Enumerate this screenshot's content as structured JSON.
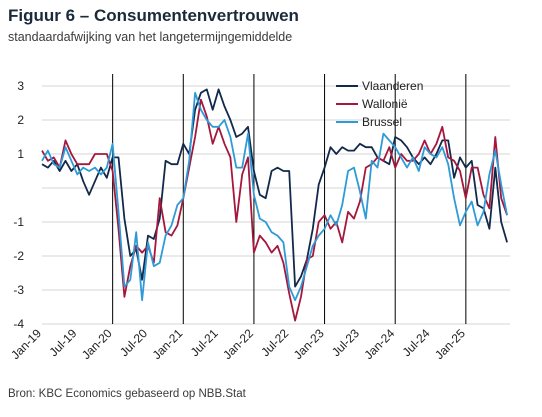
{
  "title": "Figuur 6 – Consumentenvertrouwen",
  "subtitle": "standaardafwijking van het langetermijngemiddelde",
  "source": "Bron: KBC Economics gebaseerd op NBB.Stat",
  "colors": {
    "Vlaanderen": "#13294b",
    "Wallonië": "#a5173c",
    "Brussel": "#2e9bd6",
    "grid": "#d4d4d4",
    "marker": "#000000"
  },
  "chart_data": {
    "type": "line",
    "ylim": [
      -4,
      3
    ],
    "yticks": [
      3,
      2,
      1,
      -1,
      -2,
      -3,
      -4
    ],
    "x_start": "Jan-19",
    "x_end": "Apr-25",
    "xtick_labels": [
      "Jan-19",
      "Jul-19",
      "Jan-20",
      "Jul-20",
      "Jan-21",
      "Jul-21",
      "Jan-22",
      "Jul-22",
      "Jan-23",
      "Jul-23",
      "Jan-24",
      "Jul-24",
      "Jan-25"
    ],
    "year_markers": [
      "Jan-20",
      "Jan-21",
      "Jan-22",
      "Jan-23",
      "Jan-24",
      "Jan-25"
    ],
    "legend_position": "top-right",
    "grid": true,
    "series": [
      {
        "name": "Vlaanderen",
        "values": [
          0.7,
          0.6,
          0.8,
          0.5,
          0.8,
          0.5,
          0.7,
          0.2,
          -0.2,
          0.2,
          0.6,
          0.3,
          0.9,
          0.9,
          -0.9,
          -2.0,
          -1.8,
          -2.7,
          -1.4,
          -1.5,
          -0.9,
          0.8,
          0.7,
          0.7,
          1.3,
          1.0,
          2.3,
          2.8,
          2.9,
          2.3,
          2.9,
          2.4,
          2.0,
          1.5,
          1.6,
          1.8,
          0.5,
          -0.2,
          -0.3,
          0.5,
          0.6,
          0.5,
          0.5,
          -2.9,
          -2.6,
          -2.1,
          -1.2,
          0.1,
          0.6,
          1.2,
          1.0,
          1.2,
          1.1,
          1.1,
          1.3,
          1.2,
          1.2,
          0.9,
          0.8,
          0.7,
          1.5,
          1.4,
          1.2,
          0.9,
          0.7,
          0.9,
          0.7,
          1.0,
          1.4,
          1.4,
          0.3,
          0.9,
          0.6,
          0.8,
          -0.5,
          -0.6,
          -1.2,
          0.6,
          -1.0,
          -1.6
        ]
      },
      {
        "name": "Wallonië",
        "values": [
          1.1,
          0.8,
          0.9,
          0.6,
          1.4,
          1.0,
          0.7,
          0.7,
          0.7,
          1.0,
          1.0,
          1.0,
          0.5,
          -1.2,
          -3.2,
          -2.3,
          -1.7,
          -1.9,
          -1.7,
          -2.2,
          -0.3,
          -1.3,
          -1.4,
          -1.1,
          -0.3,
          0.6,
          1.5,
          2.6,
          2.1,
          1.3,
          1.8,
          1.3,
          0.9,
          -1.0,
          0.4,
          0.9,
          -1.9,
          -1.4,
          -1.6,
          -1.9,
          -1.7,
          -2.2,
          -3.1,
          -3.9,
          -3.2,
          -2.1,
          -2.0,
          -1.0,
          -0.8,
          -1.2,
          -1.0,
          -1.6,
          -0.7,
          -0.9,
          -0.4,
          0.6,
          0.7,
          0.9,
          0.8,
          1.2,
          0.6,
          1.0,
          0.8,
          0.8,
          1.0,
          1.4,
          1.0,
          1.3,
          1.8,
          0.9,
          0.8,
          0.5,
          -0.3,
          0.6,
          0.6,
          -0.2,
          -0.6,
          1.5,
          -0.3,
          -0.8
        ]
      },
      {
        "name": "Brussel",
        "values": [
          0.8,
          1.1,
          0.7,
          0.6,
          1.2,
          0.8,
          0.4,
          0.6,
          0.5,
          0.6,
          0.4,
          0.6,
          1.3,
          -0.7,
          -2.9,
          -2.7,
          -1.3,
          -3.3,
          -1.6,
          -2.3,
          -2.2,
          -1.4,
          -1.1,
          -0.5,
          -0.3,
          0.8,
          2.8,
          2.3,
          2.0,
          1.8,
          1.8,
          2.0,
          1.5,
          0.6,
          0.6,
          1.6,
          -0.2,
          -0.9,
          -1.0,
          -1.3,
          -1.4,
          -1.6,
          -2.9,
          -3.3,
          -2.9,
          -2.3,
          -1.7,
          -1.4,
          -1.2,
          -0.8,
          -1.1,
          -0.5,
          0.5,
          0.6,
          -0.1,
          -0.9,
          0.8,
          0.6,
          1.6,
          1.4,
          1.2,
          0.9,
          0.6,
          0.9,
          0.5,
          1.2,
          1.0,
          0.9,
          1.2,
          0.7,
          -0.3,
          -1.1,
          -0.7,
          -0.4,
          -1.1,
          -0.7,
          0.4,
          1.1,
          0.1,
          -0.8
        ]
      }
    ]
  }
}
